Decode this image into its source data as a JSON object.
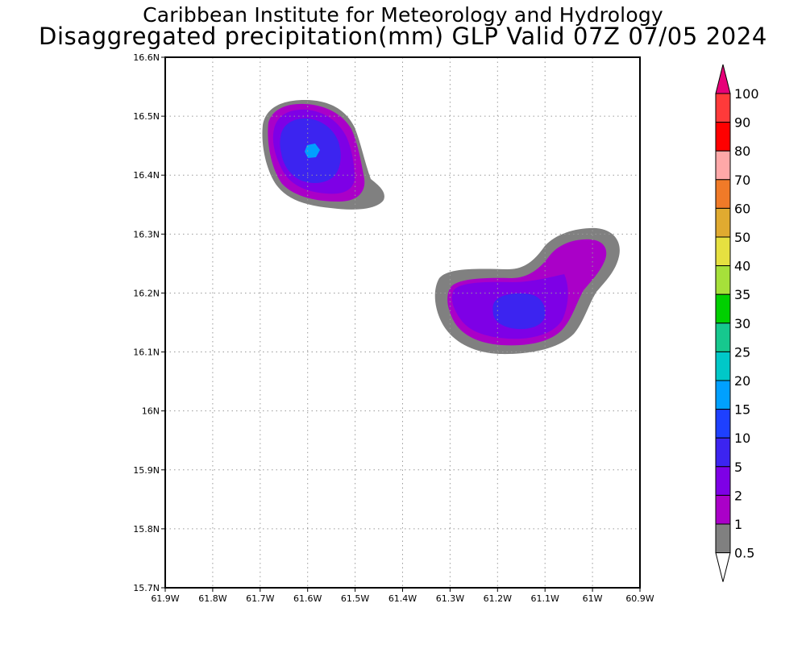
{
  "header": {
    "institute": "Caribbean Institute for Meteorology and Hydrology",
    "product": "Disaggregated precipitation(mm) GLP Valid 07Z 07/05 2024"
  },
  "map": {
    "lon_ticks": [
      "61.9W",
      "61.8W",
      "61.7W",
      "61.6W",
      "61.5W",
      "61.4W",
      "61.3W",
      "61.2W",
      "61.1W",
      "61W",
      "60.9W"
    ],
    "lat_ticks": [
      "16.6N",
      "16.5N",
      "16.4N",
      "16.3N",
      "16.2N",
      "16.1N",
      "16N",
      "15.9N",
      "15.8N",
      "15.7N"
    ],
    "lon_range": [
      -61.9,
      -60.9
    ],
    "lat_range": [
      15.7,
      16.6
    ]
  },
  "legend": {
    "labels": [
      "100",
      "90",
      "80",
      "70",
      "60",
      "50",
      "40",
      "35",
      "30",
      "25",
      "20",
      "15",
      "10",
      "5",
      "2",
      "1",
      "0.5"
    ],
    "colors": [
      "#ff3a3a",
      "#ff0000",
      "#ffa8a8",
      "#f07a28",
      "#e0aa30",
      "#e6e040",
      "#a6e03a",
      "#00d000",
      "#16c88e",
      "#00c8c8",
      "#00a0ff",
      "#1e40ff",
      "#3c24f0",
      "#7e00e6",
      "#aa00c8",
      "#808080"
    ],
    "over_color": "#e60078",
    "under_color": "#ffffff"
  },
  "colors": {
    "frame": "#000000",
    "grid": "#9a9a9a",
    "shade_0_5": "#808080",
    "shade_1": "#aa00c8",
    "shade_2": "#7e00e6",
    "shade_5": "#3c24f0",
    "shade_15": "#00a0ff"
  }
}
